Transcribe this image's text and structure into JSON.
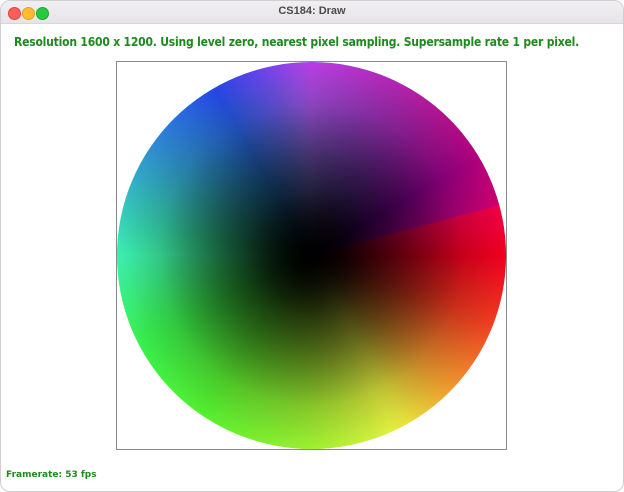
{
  "window": {
    "title": "CS184: Draw"
  },
  "status": {
    "text": "Resolution 1600 x 1200. Using level zero, nearest pixel sampling. Supersample rate 1 per pixel."
  },
  "footer": {
    "framerate": "Framerate: 53 fps"
  },
  "colors": {
    "status_text": "#1f8a1f",
    "frame_border": "#8a8a8a"
  }
}
